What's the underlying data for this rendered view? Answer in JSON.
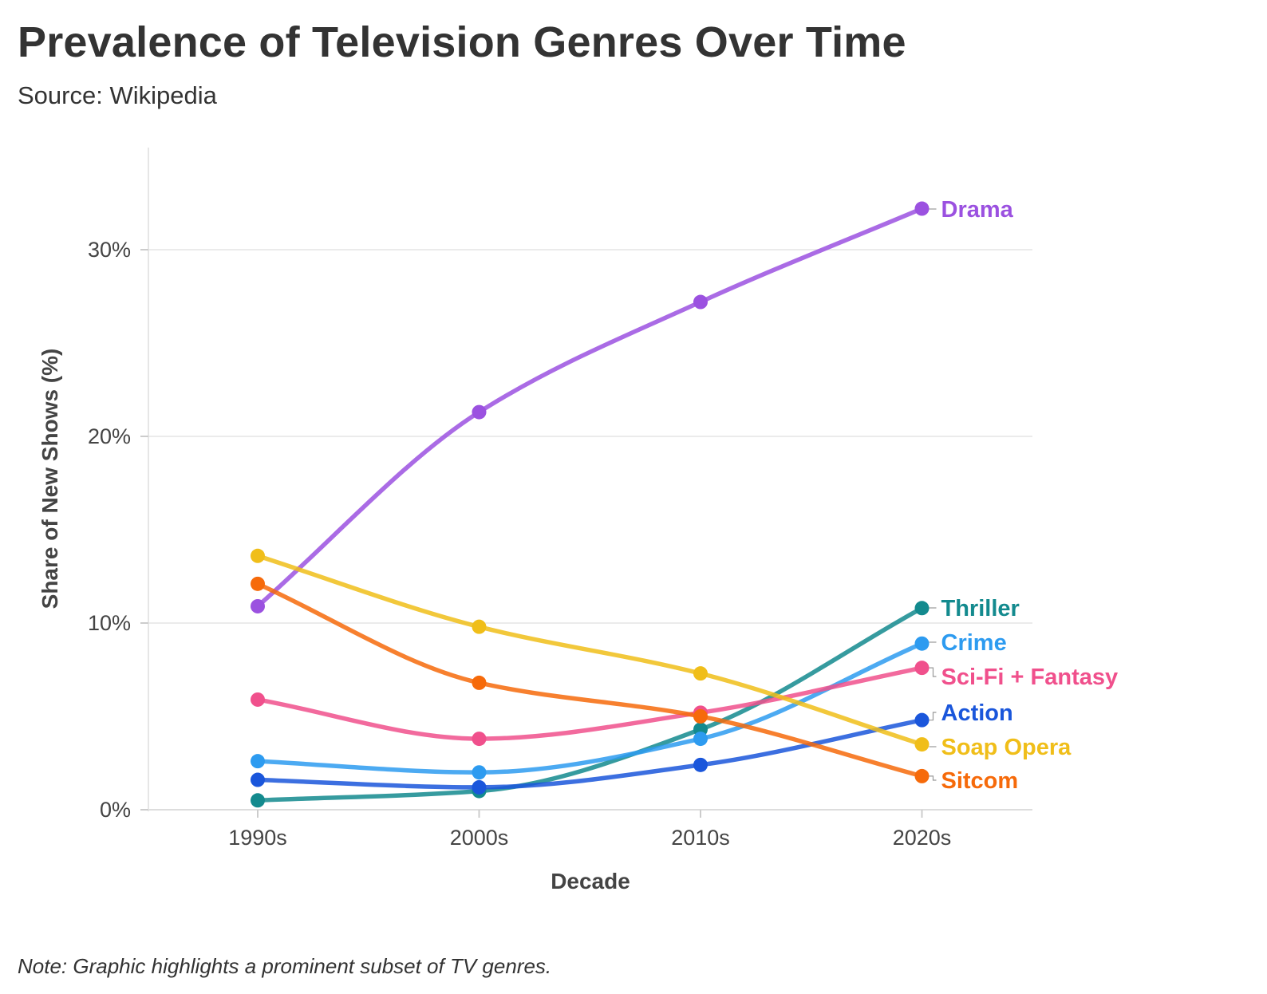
{
  "title": "Prevalence of Television Genres Over Time",
  "subtitle": "Source: Wikipedia",
  "note": "Note: Graphic highlights a prominent subset of TV genres.",
  "chart_data": {
    "type": "line",
    "title": "Prevalence of Television Genres Over Time",
    "xlabel": "Decade",
    "ylabel": "Share of New Shows (%)",
    "categories": [
      "1990s",
      "2000s",
      "2010s",
      "2020s"
    ],
    "ylim": [
      0,
      35
    ],
    "yticks": [
      0,
      10,
      20,
      30
    ],
    "ytick_labels": [
      "0%",
      "10%",
      "20%",
      "30%"
    ],
    "grid": true,
    "legend": "direct labels at right end of lines",
    "series": [
      {
        "name": "Drama",
        "color": "#9b51e0",
        "values": [
          10.9,
          21.3,
          27.2,
          32.2
        ]
      },
      {
        "name": "Thriller",
        "color": "#138a8e",
        "values": [
          0.5,
          1.0,
          4.3,
          10.8
        ]
      },
      {
        "name": "Crime",
        "color": "#2d9bf0",
        "values": [
          2.6,
          2.0,
          3.8,
          8.9
        ]
      },
      {
        "name": "Sci-Fi + Fantasy",
        "color": "#f0508c",
        "values": [
          5.9,
          3.8,
          5.2,
          7.6
        ]
      },
      {
        "name": "Action",
        "color": "#1a56db",
        "values": [
          1.6,
          1.2,
          2.4,
          4.8
        ]
      },
      {
        "name": "Soap Opera",
        "color": "#f0be19",
        "values": [
          13.6,
          9.8,
          7.3,
          3.5
        ]
      },
      {
        "name": "Sitcom",
        "color": "#f66a0a",
        "values": [
          12.1,
          6.8,
          5.0,
          1.8
        ]
      }
    ]
  }
}
